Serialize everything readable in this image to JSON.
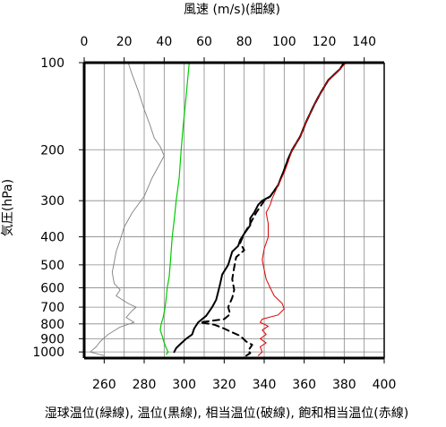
{
  "chart_data": {
    "type": "line",
    "title": "",
    "top_axis": {
      "label": "風速 (m/s)(細線)",
      "range": [
        0,
        150
      ],
      "ticks": [
        0,
        20,
        40,
        60,
        80,
        100,
        120,
        140
      ]
    },
    "bottom_axis": {
      "label": "湿球温位(緑線), 温位(黒線), 相当温位(破線), 飽和相当温位(赤線)",
      "range": [
        250,
        400
      ],
      "ticks": [
        260,
        280,
        300,
        320,
        340,
        360,
        380,
        400
      ]
    },
    "y_axis": {
      "label": "気圧(hPa)",
      "scale": "log",
      "reversed": true,
      "range": [
        100,
        1050
      ],
      "ticks": [
        100,
        200,
        300,
        400,
        500,
        600,
        700,
        800,
        900,
        1000
      ]
    },
    "grid": true,
    "colors": {
      "wind": "#808080",
      "wet_bulb": "#00cc00",
      "theta": "#000000",
      "theta_e": "#000000",
      "theta_es": "#dd0000"
    },
    "series": [
      {
        "key": "wind",
        "axis": "top",
        "style": "thin",
        "points": [
          [
            22,
            100
          ],
          [
            24,
            110
          ],
          [
            27,
            125
          ],
          [
            30,
            145
          ],
          [
            33,
            165
          ],
          [
            35,
            182
          ],
          [
            38,
            195
          ],
          [
            40,
            210
          ],
          [
            34,
            250
          ],
          [
            30,
            290
          ],
          [
            24,
            330
          ],
          [
            20,
            370
          ],
          [
            18,
            410
          ],
          [
            16,
            450
          ],
          [
            15,
            490
          ],
          [
            14,
            530
          ],
          [
            15,
            580
          ],
          [
            18,
            610
          ],
          [
            16,
            640
          ],
          [
            22,
            680
          ],
          [
            26,
            700
          ],
          [
            24,
            720
          ],
          [
            21,
            760
          ],
          [
            25,
            790
          ],
          [
            18,
            820
          ],
          [
            12,
            870
          ],
          [
            8,
            920
          ],
          [
            6,
            960
          ],
          [
            3,
            1000
          ],
          [
            10,
            1030
          ]
        ]
      },
      {
        "key": "wet_bulb",
        "axis": "bottom",
        "style": "solid",
        "points": [
          [
            302.5,
            100
          ],
          [
            301,
            130
          ],
          [
            299.5,
            165
          ],
          [
            298.5,
            200
          ],
          [
            297.5,
            250
          ],
          [
            296,
            300
          ],
          [
            295,
            350
          ],
          [
            294,
            400
          ],
          [
            293.5,
            450
          ],
          [
            293,
            500
          ],
          [
            292.5,
            550
          ],
          [
            291.5,
            600
          ],
          [
            291,
            650
          ],
          [
            290.5,
            700
          ],
          [
            289.5,
            760
          ],
          [
            288.5,
            800
          ],
          [
            288,
            840
          ],
          [
            289,
            880
          ],
          [
            290,
            930
          ],
          [
            291,
            970
          ],
          [
            292,
            1000
          ],
          [
            291,
            1020
          ]
        ]
      },
      {
        "key": "theta",
        "axis": "bottom",
        "style": "thick",
        "points": [
          [
            380,
            100
          ],
          [
            378,
            105
          ],
          [
            372,
            115
          ],
          [
            368,
            128
          ],
          [
            365,
            140
          ],
          [
            361,
            160
          ],
          [
            358,
            180
          ],
          [
            354,
            200
          ],
          [
            352,
            215
          ],
          [
            350,
            235
          ],
          [
            347,
            265
          ],
          [
            343,
            290
          ],
          [
            339,
            300
          ],
          [
            337,
            310
          ],
          [
            335,
            330
          ],
          [
            333,
            345
          ],
          [
            333,
            365
          ],
          [
            330,
            390
          ],
          [
            328,
            410
          ],
          [
            327,
            430
          ],
          [
            324,
            450
          ],
          [
            322,
            500
          ],
          [
            319,
            540
          ],
          [
            318,
            580
          ],
          [
            317,
            620
          ],
          [
            316,
            660
          ],
          [
            314,
            700
          ],
          [
            311,
            750
          ],
          [
            307,
            790
          ],
          [
            305,
            830
          ],
          [
            304,
            870
          ],
          [
            301,
            900
          ],
          [
            298,
            940
          ],
          [
            296,
            970
          ],
          [
            295,
            1000
          ]
        ]
      },
      {
        "key": "theta_e",
        "axis": "bottom",
        "style": "dashed",
        "points": [
          [
            380,
            100
          ],
          [
            378,
            105
          ],
          [
            372,
            115
          ],
          [
            368,
            128
          ],
          [
            365,
            140
          ],
          [
            361,
            160
          ],
          [
            358,
            180
          ],
          [
            354,
            200
          ],
          [
            352,
            215
          ],
          [
            350,
            235
          ],
          [
            347,
            265
          ],
          [
            343,
            290
          ],
          [
            340,
            300
          ],
          [
            338,
            315
          ],
          [
            336,
            330
          ],
          [
            333,
            360
          ],
          [
            330,
            390
          ],
          [
            328,
            420
          ],
          [
            330,
            445
          ],
          [
            326,
            470
          ],
          [
            325,
            510
          ],
          [
            324,
            560
          ],
          [
            325,
            610
          ],
          [
            324,
            650
          ],
          [
            322,
            700
          ],
          [
            323,
            740
          ],
          [
            320,
            770
          ],
          [
            308,
            790
          ],
          [
            315,
            805
          ],
          [
            320,
            830
          ],
          [
            323,
            850
          ],
          [
            328,
            880
          ],
          [
            331,
            920
          ],
          [
            334,
            945
          ],
          [
            332,
            990
          ],
          [
            333,
            1010
          ],
          [
            331,
            1030
          ]
        ]
      },
      {
        "key": "theta_es",
        "axis": "bottom",
        "style": "thin",
        "points": [
          [
            381,
            100
          ],
          [
            378,
            105
          ],
          [
            372,
            115
          ],
          [
            368,
            128
          ],
          [
            365,
            140
          ],
          [
            361,
            160
          ],
          [
            358,
            180
          ],
          [
            354,
            200
          ],
          [
            352,
            220
          ],
          [
            350,
            240
          ],
          [
            347,
            265
          ],
          [
            344,
            295
          ],
          [
            343,
            310
          ],
          [
            341,
            330
          ],
          [
            342,
            360
          ],
          [
            342,
            400
          ],
          [
            340,
            440
          ],
          [
            339,
            480
          ],
          [
            340,
            520
          ],
          [
            341,
            560
          ],
          [
            343,
            600
          ],
          [
            345,
            640
          ],
          [
            349,
            680
          ],
          [
            350,
            710
          ],
          [
            347,
            745
          ],
          [
            339,
            770
          ],
          [
            338,
            790
          ],
          [
            342,
            815
          ],
          [
            339,
            840
          ],
          [
            341,
            870
          ],
          [
            338,
            900
          ],
          [
            341,
            930
          ],
          [
            338,
            960
          ],
          [
            339,
            1000
          ],
          [
            337,
            1030
          ]
        ]
      }
    ]
  }
}
